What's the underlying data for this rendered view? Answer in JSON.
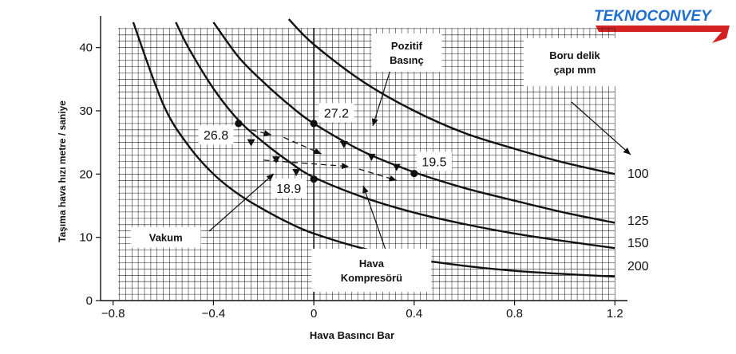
{
  "logo": {
    "text": "TEKNOCONVEY",
    "colors": [
      "#1f6fd1",
      "#d42222"
    ]
  },
  "chart_data": {
    "type": "line",
    "xlabel": "Hava Basıncı Bar",
    "ylabel": "Taşıma hava hızı metre / saniye",
    "xlim": [
      -0.85,
      1.25
    ],
    "ylim": [
      0,
      45
    ],
    "xticks": [
      -0.8,
      -0.4,
      0,
      0.4,
      0.8,
      1.2
    ],
    "xtick_labels": [
      "−0.8",
      "−0.4",
      "0",
      "0.4",
      "0.8",
      "1.2"
    ],
    "yticks": [
      0,
      10,
      20,
      30,
      40
    ],
    "ytick_labels": [
      "0",
      "10",
      "20",
      "30",
      "40"
    ],
    "grid": true,
    "series": [
      {
        "name": "100",
        "x": [
          -0.1,
          0,
          0.2,
          0.4,
          0.6,
          0.8,
          1.0,
          1.2
        ],
        "y": [
          44.5,
          40.5,
          34.5,
          30.0,
          26.5,
          24.0,
          21.8,
          20.0
        ]
      },
      {
        "name": "125",
        "x": [
          -0.4,
          -0.3,
          -0.2,
          -0.1,
          0,
          0.2,
          0.4,
          0.6,
          0.8,
          1.0,
          1.2
        ],
        "y": [
          44.0,
          38.5,
          34.5,
          31.0,
          28.0,
          23.5,
          20.3,
          17.8,
          15.8,
          13.9,
          12.3
        ]
      },
      {
        "name": "150",
        "x": [
          -0.55,
          -0.5,
          -0.4,
          -0.3,
          -0.2,
          -0.1,
          0,
          0.2,
          0.4,
          0.6,
          0.8,
          1.0,
          1.2
        ],
        "y": [
          44.0,
          40.0,
          33.5,
          28.5,
          25.0,
          22.0,
          19.5,
          16.3,
          13.9,
          12.1,
          10.6,
          9.4,
          8.3
        ]
      },
      {
        "name": "200",
        "x": [
          -0.72,
          -0.6,
          -0.5,
          -0.4,
          -0.3,
          -0.2,
          -0.1,
          0,
          0.2,
          0.4,
          0.6,
          0.8,
          1.0,
          1.2
        ],
        "y": [
          44.0,
          31.0,
          24.5,
          20.0,
          16.8,
          14.4,
          12.3,
          10.6,
          8.2,
          6.6,
          5.5,
          4.7,
          4.2,
          3.8
        ]
      }
    ],
    "points": [
      {
        "x": -0.3,
        "y": 28.0,
        "marker": "dot"
      },
      {
        "x": -0.25,
        "y": 25.0,
        "marker": "triangle"
      },
      {
        "x": -0.15,
        "y": 22.3,
        "marker": "triangle"
      },
      {
        "x": -0.07,
        "y": 20.3,
        "marker": "triangle"
      },
      {
        "x": 0,
        "y": 28.0,
        "marker": "dot"
      },
      {
        "x": 0,
        "y": 19.2,
        "marker": "dot"
      },
      {
        "x": 0.12,
        "y": 24.7,
        "marker": "triangle"
      },
      {
        "x": 0.23,
        "y": 22.7,
        "marker": "triangle"
      },
      {
        "x": 0.33,
        "y": 21.1,
        "marker": "triangle"
      },
      {
        "x": 0.4,
        "y": 20.1,
        "marker": "dot"
      }
    ],
    "dashed_arrows": [
      {
        "from": [
          -0.25,
          27.0
        ],
        "to": [
          -0.17,
          26.2
        ]
      },
      {
        "from": [
          -0.12,
          25.8
        ],
        "to": [
          0.03,
          23.2
        ]
      },
      {
        "from": [
          -0.2,
          22.2
        ],
        "to": [
          0.14,
          21.2
        ]
      },
      {
        "from": [
          0.18,
          20.8
        ],
        "to": [
          0.33,
          19.0
        ]
      }
    ],
    "annotations": {
      "value_labels": [
        {
          "text": "26.8",
          "x": -0.39,
          "y": 26.2
        },
        {
          "text": "27.2",
          "x": 0.09,
          "y": 29.7
        },
        {
          "text": "19.5",
          "x": 0.48,
          "y": 22.0
        },
        {
          "text": "18.9",
          "x": -0.1,
          "y": 17.8
        }
      ],
      "callouts": [
        {
          "lines": [
            "Pozitif",
            "Basınç"
          ],
          "x": 0.37,
          "y": 39.2
        },
        {
          "lines": [
            "Boru delik",
            "çapı mm"
          ],
          "x": 1.04,
          "y": 37.7
        },
        {
          "lines": [
            "Vakum"
          ],
          "x": -0.59,
          "y": 10.0
        },
        {
          "lines": [
            "Hava",
            "Kompresörü"
          ],
          "x": 0.23,
          "y": 4.8
        }
      ],
      "size_labels": [
        "100",
        "125",
        "150",
        "200"
      ]
    }
  }
}
